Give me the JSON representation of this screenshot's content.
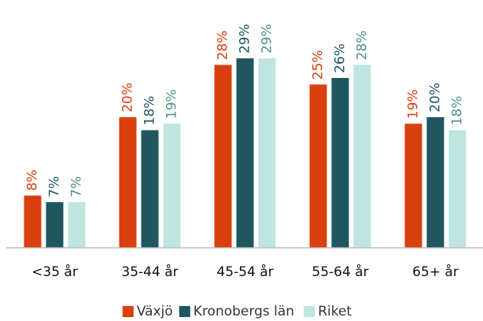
{
  "chart_data": {
    "type": "bar",
    "categories": [
      "<35 år",
      "35-44 år",
      "45-54 år",
      "55-64 år",
      "65+ år"
    ],
    "series": [
      {
        "name": "Växjö",
        "color": "#d9400f",
        "label_color": "#d9400f",
        "values": [
          8,
          20,
          28,
          25,
          19
        ],
        "value_labels": [
          "8%",
          "20%",
          "28%",
          "25%",
          "19%"
        ]
      },
      {
        "name": "Kronobergs län",
        "color": "#1f5660",
        "label_color": "#1f5660",
        "values": [
          7,
          18,
          29,
          26,
          20
        ],
        "value_labels": [
          "7%",
          "18%",
          "29%",
          "26%",
          "20%"
        ]
      },
      {
        "name": "Riket",
        "color": "#bfe5e0",
        "label_color": "#4f8f8c",
        "values": [
          7,
          19,
          29,
          28,
          18
        ],
        "value_labels": [
          "7%",
          "19%",
          "29%",
          "28%",
          "18%"
        ]
      }
    ],
    "ylim": [
      0,
      36
    ],
    "legend": "bottom"
  }
}
